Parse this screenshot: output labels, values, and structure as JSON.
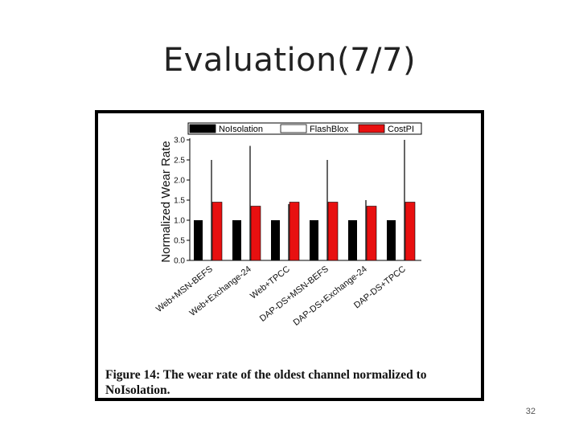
{
  "slide": {
    "title": "Evaluation(7/7)",
    "page_number": "32"
  },
  "figure": {
    "caption": "Figure 14: The wear rate of the oldest channel normalized to NoIsolation."
  },
  "colors": {
    "noisolation": "#000000",
    "flashblox": "#ffffff",
    "costpi": "#e81010",
    "frame": "#000000"
  },
  "chart_data": {
    "type": "bar",
    "title": "",
    "xlabel": "",
    "ylabel": "Normalized Wear Rate",
    "ylim": [
      0,
      3.0
    ],
    "yticks": [
      "0.0",
      "0.5",
      "1.0",
      "1.5",
      "2.0",
      "2.5",
      "3.0"
    ],
    "categories": [
      "Web+MSN-BEFS",
      "Web+Exchange-24",
      "Web+TPCC",
      "DAP-DS+MSN-BEFS",
      "DAP-DS+Exchange-24",
      "DAP-DS+TPCC"
    ],
    "legend_position": "top",
    "series": [
      {
        "name": "NoIsolation",
        "values": [
          1.0,
          1.0,
          1.0,
          1.0,
          1.0,
          1.0
        ]
      },
      {
        "name": "FlashBlox",
        "values": [
          2.5,
          2.85,
          1.4,
          2.5,
          1.5,
          3.0
        ]
      },
      {
        "name": "CostPI",
        "values": [
          1.45,
          1.35,
          1.45,
          1.45,
          1.35,
          1.45
        ]
      }
    ]
  }
}
